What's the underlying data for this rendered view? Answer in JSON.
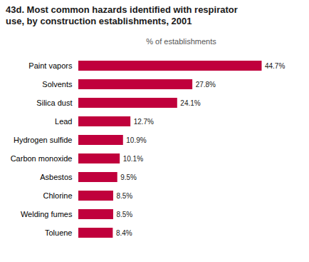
{
  "chart_data": {
    "type": "bar",
    "orientation": "horizontal",
    "title": "43d. Most common hazards identified with respirator\nuse, by construction establishments, 2001",
    "xlabel": "% of establishments",
    "categories": [
      "Toluene",
      "Welding fumes",
      "Chlorine",
      "Asbestos",
      "Carbon monoxide",
      "Hydrogen sulfide",
      "Lead",
      "Silica dust",
      "Solvents",
      "Paint vapors"
    ],
    "values": [
      8.4,
      8.5,
      8.5,
      9.5,
      10.1,
      10.9,
      12.7,
      24.1,
      27.8,
      44.7
    ],
    "value_labels": [
      "8.4%",
      "8.5%",
      "8.5%",
      "9.5%",
      "10.1%",
      "10.9%",
      "12.7%",
      "24.1%",
      "27.8%",
      "44.7%"
    ],
    "data_labels": true,
    "color": "#c0003c",
    "xlim": [
      0,
      50
    ],
    "grid": false,
    "tick_labels": "y"
  }
}
